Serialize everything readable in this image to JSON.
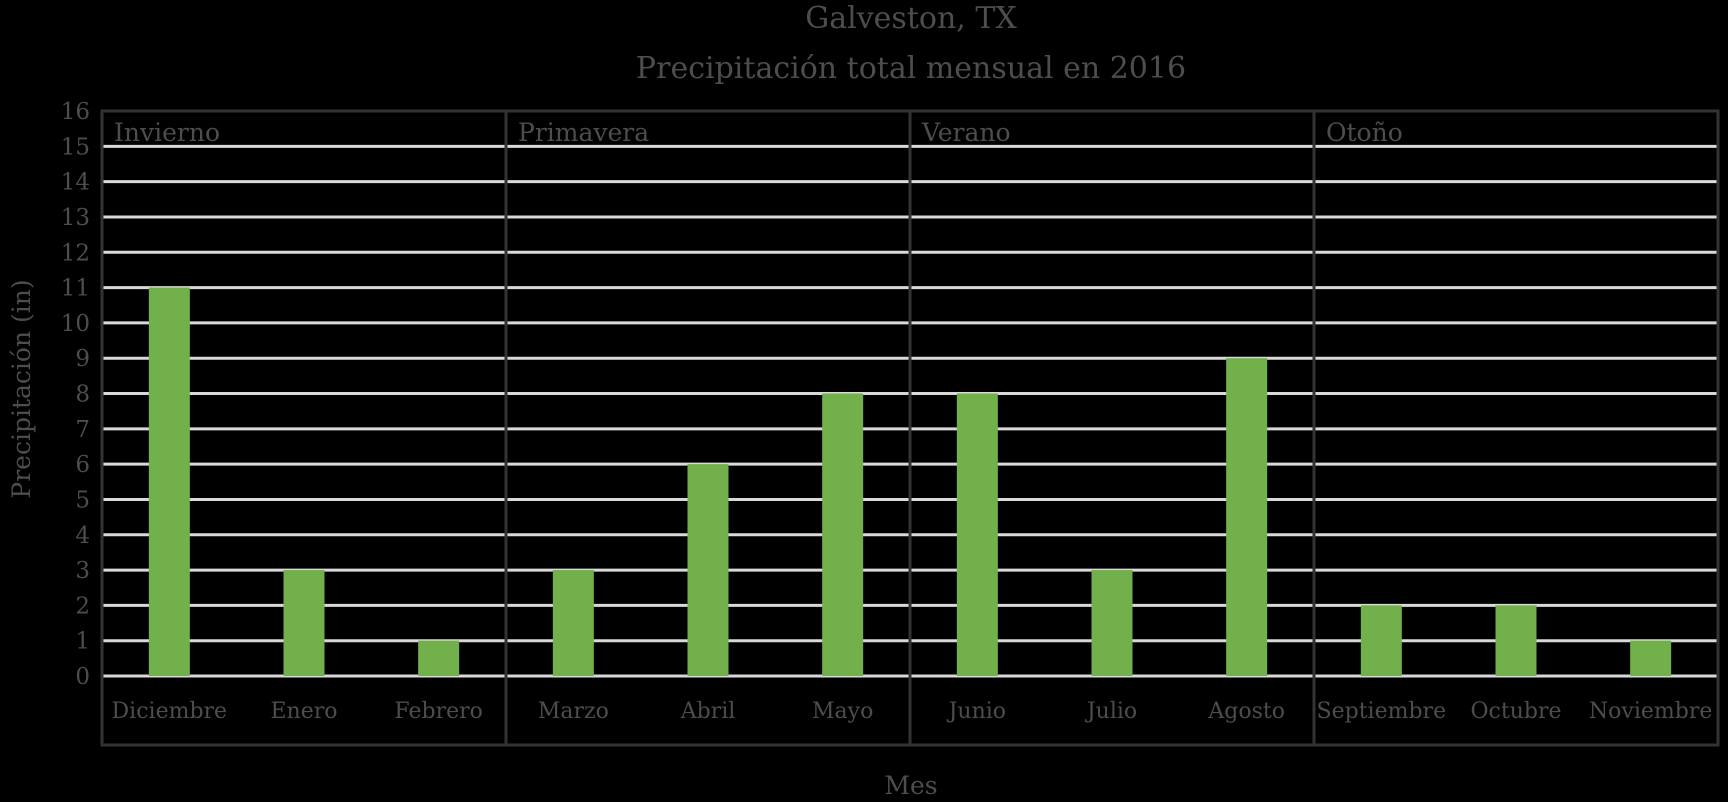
{
  "chart_data": {
    "type": "bar",
    "title": "Galveston, TX",
    "subtitle": "Precipitación total mensual en 2016",
    "xlabel": "Mes",
    "ylabel": "Precipitación (in)",
    "ylim": [
      0,
      16
    ],
    "yticks": [
      0,
      1,
      2,
      3,
      4,
      5,
      6,
      7,
      8,
      9,
      10,
      11,
      12,
      13,
      14,
      15,
      16
    ],
    "grid": true,
    "categories": [
      "Diciembre",
      "Enero",
      "Febrero",
      "Marzo",
      "Abril",
      "Mayo",
      "Junio",
      "Julio",
      "Agosto",
      "Septiembre",
      "Octubre",
      "Noviembre"
    ],
    "values": [
      11,
      3,
      1,
      3,
      6,
      8,
      8,
      3,
      9,
      2,
      2,
      1
    ],
    "groups": [
      {
        "label": "Invierno",
        "count": 3
      },
      {
        "label": "Primavera",
        "count": 3
      },
      {
        "label": "Verano",
        "count": 3
      },
      {
        "label": "Otoño",
        "count": 3
      }
    ]
  },
  "colors": {
    "background": "#000000",
    "bar": "#72b04c",
    "grid": "#d9d9d9",
    "frame": "#333333",
    "text": "#4d4d4d"
  }
}
